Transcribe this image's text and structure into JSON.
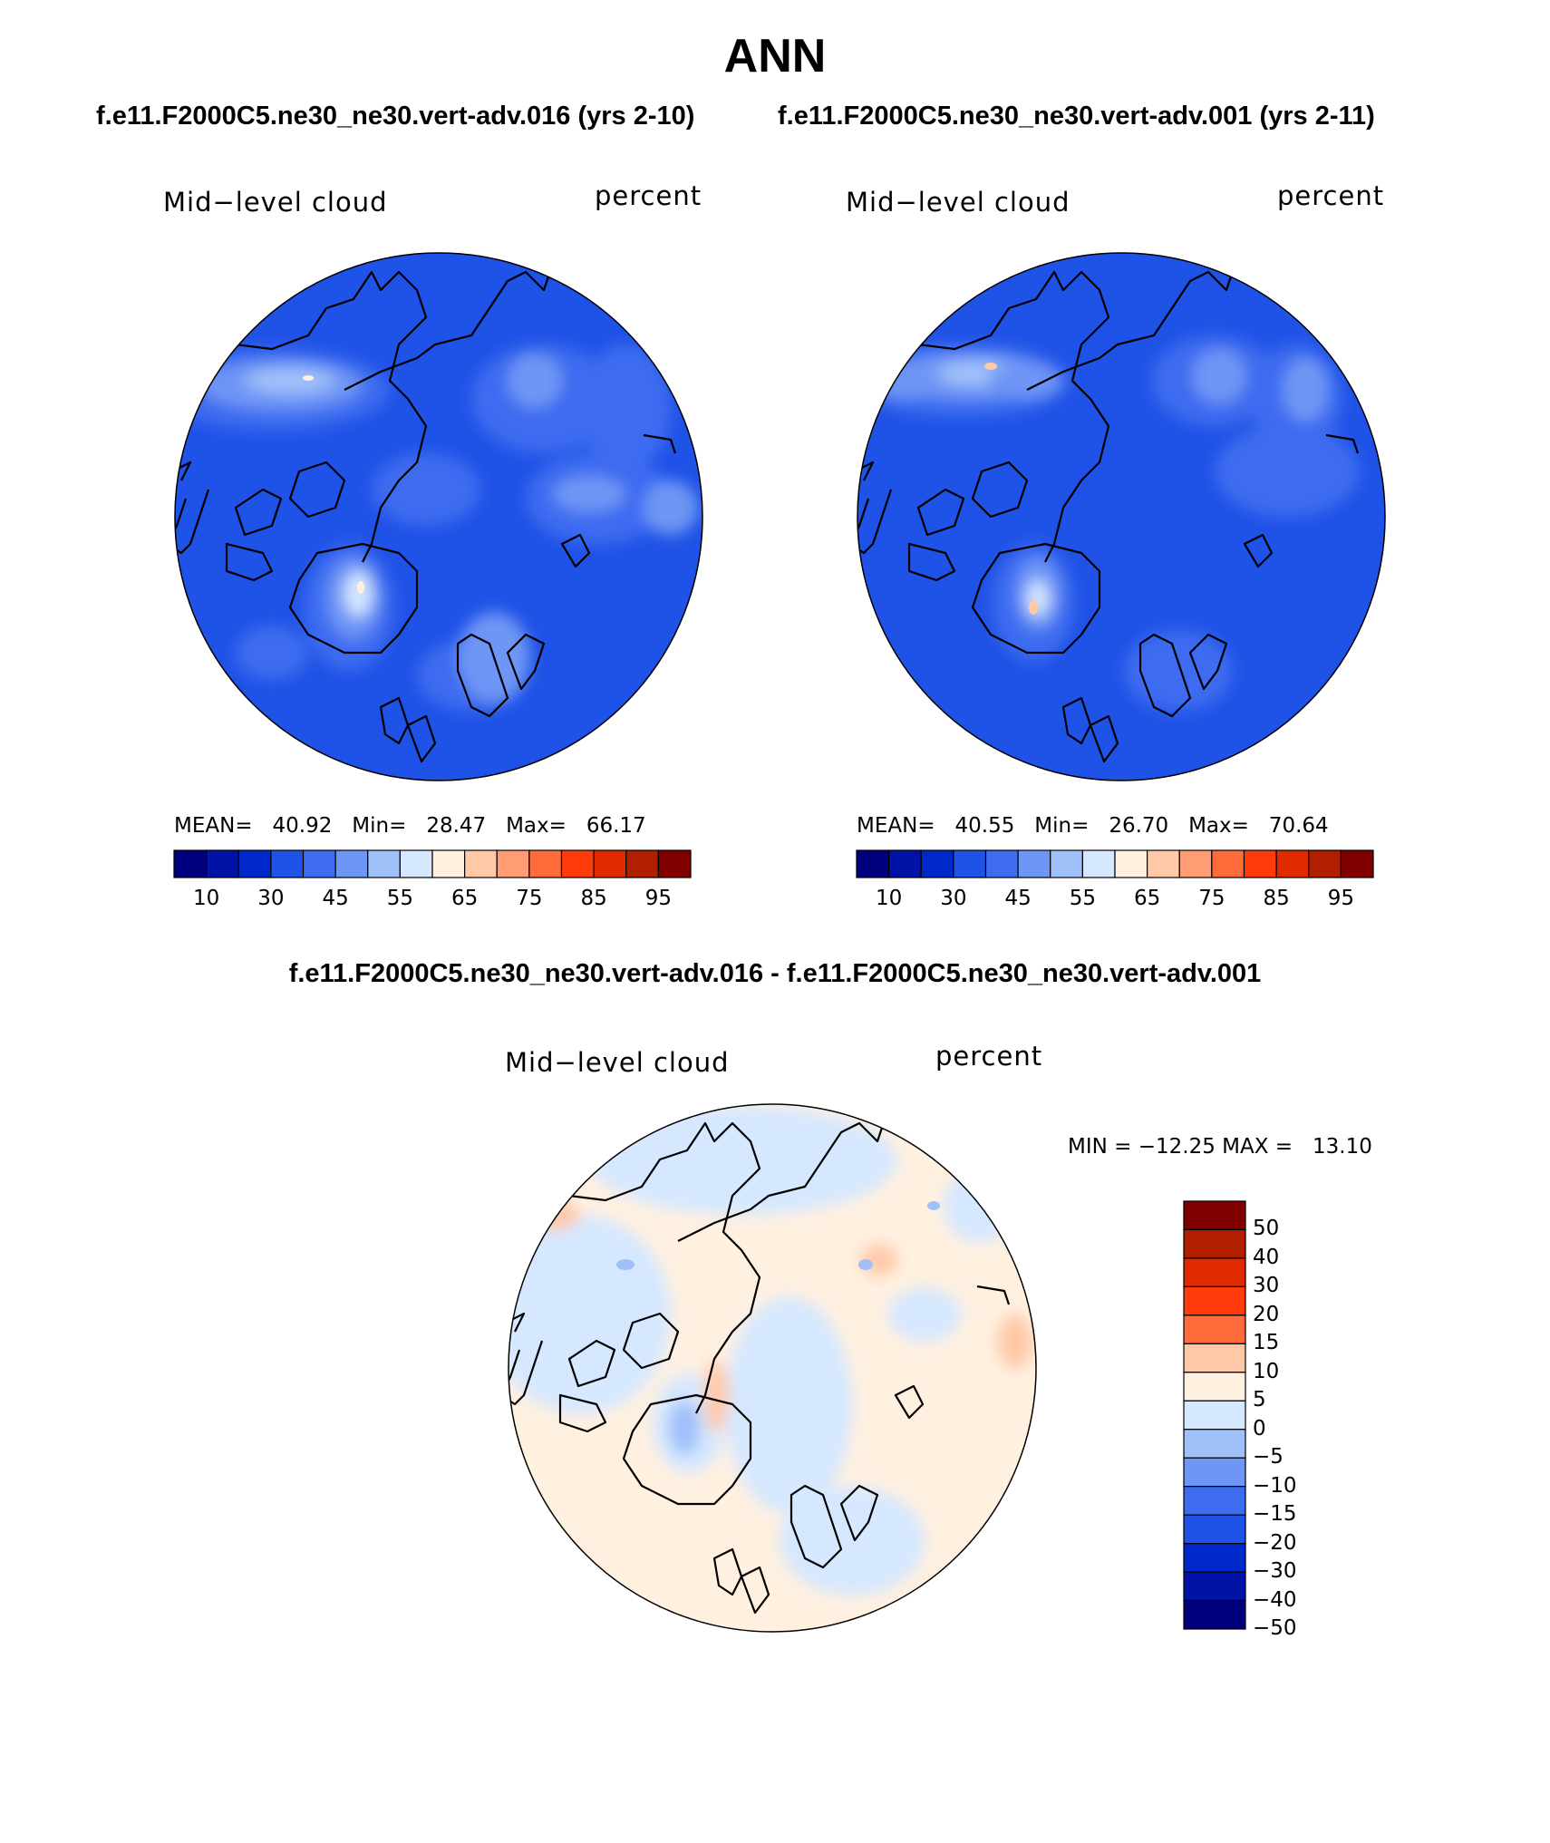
{
  "figure": {
    "title": "ANN",
    "top_subtitle_left": "f.e11.F2000C5.ne30_ne30.vert-adv.016 (yrs 2-10)",
    "top_subtitle_right": "f.e11.F2000C5.ne30_ne30.vert-adv.001 (yrs 2-11)",
    "diff_subtitle": "f.e11.F2000C5.ne30_ne30.vert-adv.016 - f.e11.F2000C5.ne30_ne30.vert-adv.001"
  },
  "panels": [
    {
      "variable": "Mid−level cloud",
      "units": "percent",
      "stats": "MEAN=   40.92   Min=   28.47   Max=   66.17",
      "mean": 40.92,
      "min": 28.47,
      "max": 66.17
    },
    {
      "variable": "Mid−level cloud",
      "units": "percent",
      "stats": "MEAN=   40.55   Min=   26.70   Max=   70.64",
      "mean": 40.55,
      "min": 26.7,
      "max": 70.64
    },
    {
      "variable": "Mid−level cloud",
      "units": "percent",
      "stats": "MIN = −12.25 MAX =   13.10",
      "min": -12.25,
      "max": 13.1
    }
  ],
  "colorbar_abs": {
    "colors": [
      "#00007f",
      "#0013a6",
      "#0029cc",
      "#1f52e6",
      "#3d6cf0",
      "#6e96f5",
      "#a0c0fa",
      "#d6e8ff",
      "#fff0e0",
      "#ffc9a8",
      "#ff9c73",
      "#ff6b3a",
      "#ff3b0a",
      "#e02a00",
      "#b01f00",
      "#800000"
    ],
    "labels": [
      "10",
      "30",
      "45",
      "55",
      "65",
      "75",
      "85",
      "95"
    ]
  },
  "colorbar_diff": {
    "colors": [
      "#800000",
      "#b01f00",
      "#e02a00",
      "#ff3b0a",
      "#ff6b3a",
      "#ffc9a8",
      "#fff0e0",
      "#d6e8ff",
      "#a0c0fa",
      "#6e96f5",
      "#3d6cf0",
      "#1f52e6",
      "#0029cc",
      "#0013a6",
      "#00007f"
    ],
    "labels": [
      "50",
      "40",
      "30",
      "20",
      "15",
      "10",
      "5",
      "0",
      "−5",
      "−10",
      "−15",
      "−20",
      "−30",
      "−40",
      "−50"
    ]
  }
}
